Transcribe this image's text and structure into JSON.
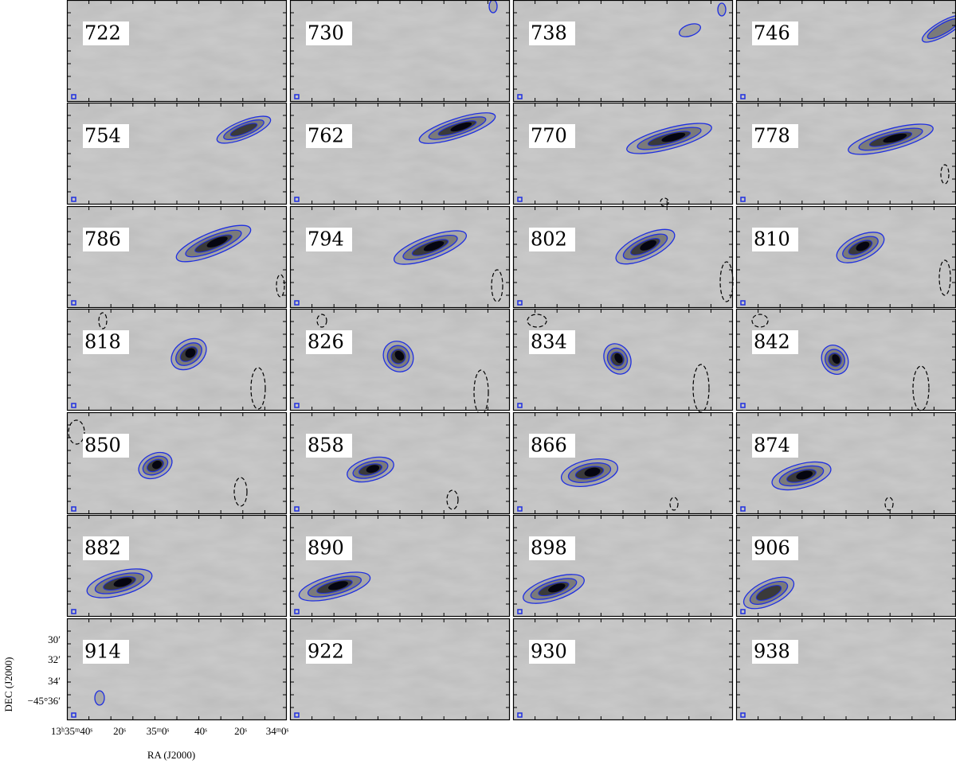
{
  "figure": {
    "panels": [
      "722",
      "730",
      "738",
      "746",
      "754",
      "762",
      "770",
      "778",
      "786",
      "794",
      "802",
      "810",
      "818",
      "826",
      "834",
      "842",
      "850",
      "858",
      "866",
      "874",
      "882",
      "890",
      "898",
      "906",
      "914",
      "922",
      "930",
      "938"
    ],
    "y_axis": {
      "label": "DEC (J2000)",
      "ticks": [
        "30′",
        "32′",
        "34′",
        "−45°36′"
      ]
    },
    "x_axis": {
      "label": "RA (J2000)",
      "ticks": [
        "13ʰ35ᵐ40ˢ",
        "20ˢ",
        "35ᵐ0ˢ",
        "40ˢ",
        "20ˢ",
        "34ᵐ0ˢ"
      ]
    }
  }
}
